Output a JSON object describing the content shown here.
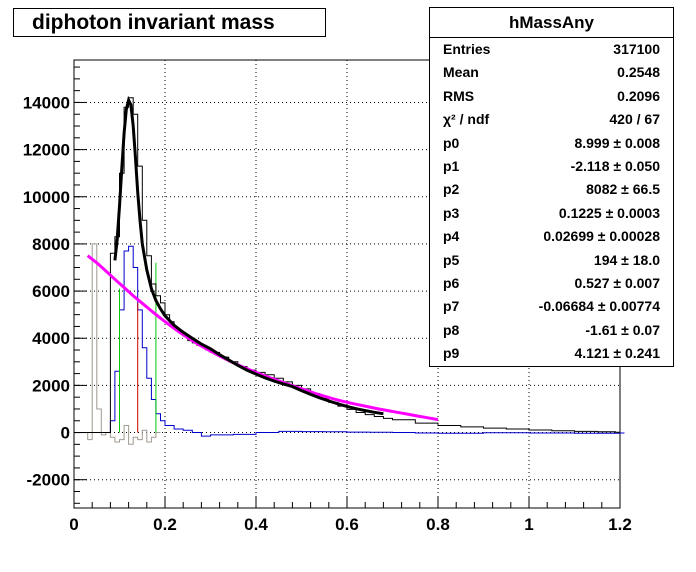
{
  "title": "diphoton invariant mass",
  "stats": {
    "name": "hMassAny",
    "rows": [
      {
        "label": "Entries",
        "value": "317100"
      },
      {
        "label": "Mean",
        "value": "0.2548"
      },
      {
        "label": "RMS",
        "value": "0.2096"
      },
      {
        "label": "χ² / ndf",
        "value": "420 / 67"
      },
      {
        "label": "p0",
        "value": "8.999 ± 0.008"
      },
      {
        "label": "p1",
        "value": "-2.118 ± 0.050"
      },
      {
        "label": "p2",
        "value": "8082 ± 66.5"
      },
      {
        "label": "p3",
        "value": "0.1225 ± 0.0003"
      },
      {
        "label": "p4",
        "value": "0.02699 ± 0.00028"
      },
      {
        "label": "p5",
        "value": "194 ± 18.0"
      },
      {
        "label": "p6",
        "value": "0.527 ± 0.007"
      },
      {
        "label": "p7",
        "value": "-0.06684 ± 0.00774"
      },
      {
        "label": "p8",
        "value": "-1.61 ± 0.07"
      },
      {
        "label": "p9",
        "value": "4.121 ± 0.241"
      }
    ]
  },
  "colors": {
    "histogram": "#000000",
    "fit": "#000000",
    "background_fit": "#ff00ff",
    "residual": "#0000cc",
    "gray_hist": "#a09a90",
    "green_line": "#00cc00",
    "red_line": "#cc0000"
  },
  "chart_data": {
    "type": "histogram",
    "title": "diphoton invariant mass",
    "xlim": [
      0,
      1.2
    ],
    "ylim": [
      -3200,
      15800
    ],
    "x_ticks": [
      0,
      0.2,
      0.4,
      0.6,
      0.8,
      1,
      1.2
    ],
    "x_tick_labels": [
      "0",
      "0.2",
      "0.4",
      "0.6",
      "0.8",
      "1",
      "1.2"
    ],
    "y_ticks": [
      -2000,
      0,
      2000,
      4000,
      6000,
      8000,
      10000,
      12000,
      14000
    ],
    "y_tick_labels": [
      "-2000",
      "0",
      "2000",
      "4000",
      "6000",
      "8000",
      "10000",
      "12000",
      "14000"
    ],
    "grid": true,
    "bin_width": 0.01,
    "series": [
      {
        "role": "data",
        "x": [
          0.0,
          0.01,
          0.02,
          0.03,
          0.04,
          0.05,
          0.06,
          0.07,
          0.08,
          0.09,
          0.1,
          0.11,
          0.12,
          0.13,
          0.14,
          0.15,
          0.16,
          0.17,
          0.18,
          0.19,
          0.2,
          0.21,
          0.22,
          0.23,
          0.24,
          0.25,
          0.26,
          0.27,
          0.28,
          0.29,
          0.3,
          0.32,
          0.34,
          0.36,
          0.38,
          0.4,
          0.42,
          0.44,
          0.46,
          0.48,
          0.5,
          0.52,
          0.54,
          0.56,
          0.58,
          0.6,
          0.62,
          0.64,
          0.66,
          0.68,
          0.7,
          0.75,
          0.8,
          0.85,
          0.9,
          0.95,
          1.0,
          1.05,
          1.1,
          1.15,
          1.19
        ],
        "values": [
          0,
          0,
          0,
          0,
          0,
          0,
          0,
          0,
          7600,
          8300,
          11000,
          13800,
          14200,
          13500,
          11300,
          9000,
          7500,
          6300,
          5800,
          5500,
          5000,
          4700,
          4400,
          4300,
          4100,
          3900,
          3800,
          3700,
          3650,
          3500,
          3400,
          3200,
          3000,
          2800,
          2650,
          2550,
          2450,
          2300,
          2150,
          2000,
          1850,
          1650,
          1450,
          1280,
          1120,
          980,
          850,
          760,
          680,
          600,
          540,
          400,
          300,
          240,
          190,
          150,
          110,
          80,
          50,
          30,
          10
        ]
      },
      {
        "role": "fit",
        "x": [
          0.09,
          0.095,
          0.1,
          0.105,
          0.11,
          0.115,
          0.12,
          0.125,
          0.13,
          0.135,
          0.14,
          0.145,
          0.15,
          0.16,
          0.17,
          0.18,
          0.19,
          0.2,
          0.22,
          0.24,
          0.26,
          0.28,
          0.3,
          0.32,
          0.34,
          0.36,
          0.38,
          0.4,
          0.42,
          0.44,
          0.46,
          0.48,
          0.5,
          0.52,
          0.54,
          0.56,
          0.58,
          0.6,
          0.62,
          0.64,
          0.66,
          0.68
        ],
        "values": [
          7300,
          8200,
          9600,
          11200,
          12700,
          13700,
          14100,
          13900,
          13000,
          11700,
          10200,
          9000,
          8000,
          6900,
          6100,
          5600,
          5250,
          4950,
          4550,
          4250,
          4000,
          3750,
          3550,
          3300,
          3080,
          2850,
          2650,
          2480,
          2320,
          2180,
          2060,
          1950,
          1780,
          1620,
          1470,
          1340,
          1220,
          1110,
          1010,
          930,
          860,
          800
        ]
      },
      {
        "role": "background-fit",
        "x": [
          0.03,
          0.05,
          0.07,
          0.09,
          0.11,
          0.13,
          0.15,
          0.17,
          0.19,
          0.21,
          0.23,
          0.25,
          0.27,
          0.29,
          0.31,
          0.33,
          0.35,
          0.37,
          0.39,
          0.41,
          0.43,
          0.45,
          0.47,
          0.49,
          0.51,
          0.53,
          0.55,
          0.57,
          0.59,
          0.61,
          0.63,
          0.65,
          0.67,
          0.69,
          0.71,
          0.73,
          0.75,
          0.77,
          0.8
        ],
        "values": [
          7500,
          7200,
          6850,
          6500,
          6150,
          5800,
          5480,
          5160,
          4850,
          4560,
          4280,
          4020,
          3780,
          3560,
          3350,
          3150,
          2960,
          2790,
          2630,
          2480,
          2330,
          2190,
          2050,
          1920,
          1790,
          1660,
          1540,
          1430,
          1330,
          1240,
          1160,
          1080,
          1000,
          930,
          860,
          790,
          720,
          650,
          550
        ]
      },
      {
        "role": "residual",
        "x": [
          0.0,
          0.02,
          0.04,
          0.06,
          0.08,
          0.09,
          0.1,
          0.11,
          0.12,
          0.13,
          0.14,
          0.15,
          0.16,
          0.17,
          0.18,
          0.19,
          0.2,
          0.22,
          0.24,
          0.26,
          0.28,
          0.3,
          0.35,
          0.4,
          0.45,
          0.5,
          0.55,
          0.6,
          0.65,
          0.7,
          0.75,
          0.8,
          0.9,
          1.0,
          1.1,
          1.2
        ],
        "values": [
          0,
          0,
          0,
          0,
          500,
          2600,
          5200,
          7700,
          7900,
          7000,
          5200,
          3600,
          2300,
          1400,
          800,
          500,
          300,
          150,
          100,
          0,
          -150,
          -100,
          -80,
          0,
          50,
          40,
          30,
          20,
          10,
          0,
          -20,
          -30,
          -10,
          -20,
          -30,
          -20
        ]
      },
      {
        "role": "gray-hist",
        "x": [
          0.0,
          0.01,
          0.02,
          0.03,
          0.04,
          0.05,
          0.06,
          0.07,
          0.08,
          0.09,
          0.1,
          0.11,
          0.12,
          0.13,
          0.14,
          0.15,
          0.16,
          0.17,
          0.18
        ],
        "values": [
          0,
          0,
          0,
          -300,
          8000,
          1000,
          -100,
          0,
          -200,
          -400,
          -300,
          300,
          -500,
          -200,
          -300,
          100,
          -400,
          -200,
          0
        ]
      }
    ],
    "markers": [
      {
        "role": "green-line",
        "x": 0.1,
        "y": 6100
      },
      {
        "role": "red-line",
        "x": 0.14,
        "y": 5500
      },
      {
        "role": "green-line",
        "x": 0.18,
        "y": 7200
      }
    ]
  }
}
